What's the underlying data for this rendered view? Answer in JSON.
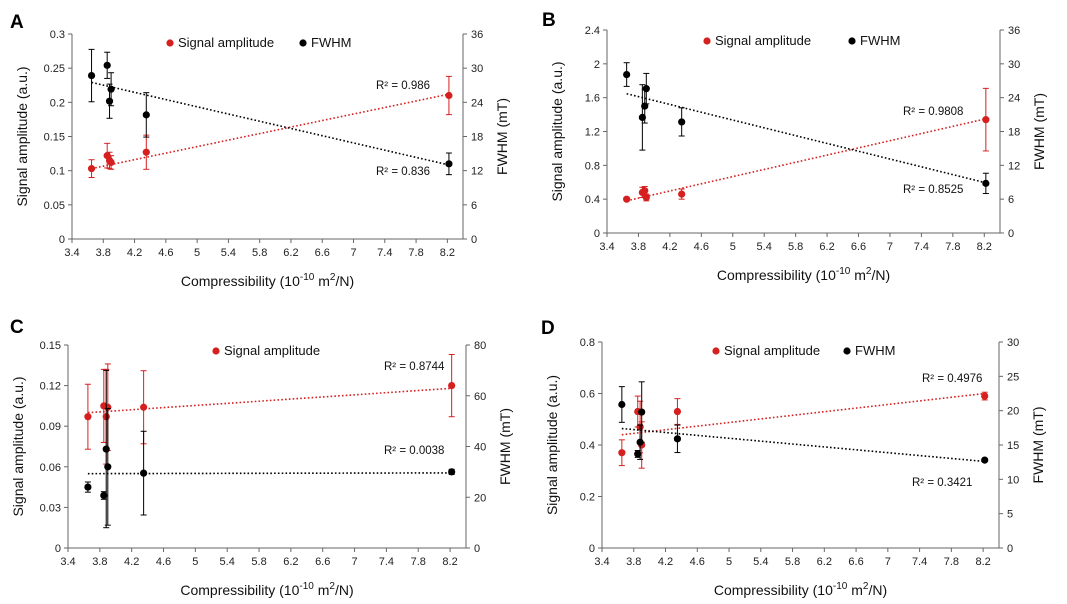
{
  "chart_data": [
    {
      "panel": "A",
      "type": "scatter",
      "xlabel": "Compressibility (10",
      "xlabel_exp": "-10",
      "xlabel_unit": " m",
      "xlabel_unit_exp": "2",
      "xlabel_end": "/N)",
      "ylabel": "Signal amplitude (a.u.)",
      "y2label": "FWHM (mT)",
      "xlim": [
        3.4,
        8.4
      ],
      "xticks": [
        "3.4",
        "3.8",
        "4.2",
        "4.6",
        "5",
        "5.4",
        "5.8",
        "6.2",
        "6.6",
        "7",
        "7.4",
        "7.8",
        "8.2"
      ],
      "ylim": [
        0,
        0.3
      ],
      "yticks": [
        "0",
        "0.05",
        "0.1",
        "0.15",
        "0.2",
        "0.25",
        "0.3"
      ],
      "y2lim": [
        0,
        36
      ],
      "y2ticks": [
        "0",
        "6",
        "12",
        "18",
        "24",
        "30",
        "36"
      ],
      "legend": [
        "Signal amplitude",
        "FWHM"
      ],
      "series": [
        {
          "name": "Signal amplitude",
          "color": "#d62020",
          "axis": "left",
          "x": [
            3.65,
            3.85,
            3.88,
            3.9,
            4.35,
            8.22
          ],
          "y": [
            0.103,
            0.122,
            0.115,
            0.112,
            0.127,
            0.21
          ],
          "err": [
            0.013,
            0.018,
            0.012,
            0.01,
            0.025,
            0.028
          ],
          "trend": [
            [
              3.65,
              0.103
            ],
            [
              8.22,
              0.212
            ]
          ],
          "r2": "R² = 0.986"
        },
        {
          "name": "FWHM",
          "color": "#000000",
          "axis": "right",
          "x": [
            3.65,
            3.85,
            3.88,
            3.9,
            4.35,
            8.22
          ],
          "y": [
            28.7,
            30.5,
            24.2,
            26.3,
            21.8,
            13.2
          ],
          "err": [
            4.6,
            2.3,
            3.0,
            2.9,
            3.9,
            1.9
          ],
          "trend": [
            [
              3.65,
              27.5
            ],
            [
              8.22,
              13.0
            ]
          ],
          "r2": "R² = 0.836"
        }
      ]
    },
    {
      "panel": "B",
      "type": "scatter",
      "xlabel": "Compressibility (10",
      "xlabel_exp": "-10",
      "xlabel_unit": " m",
      "xlabel_unit_exp": "2",
      "xlabel_end": "/N)",
      "ylabel": "Signal amplitude (a.u.)",
      "y2label": "FWHM (mT)",
      "xlim": [
        3.4,
        8.4
      ],
      "xticks": [
        "3.4",
        "3.8",
        "4.2",
        "4.6",
        "5",
        "5.4",
        "5.8",
        "6.2",
        "6.6",
        "7",
        "7.4",
        "7.8",
        "8.2"
      ],
      "ylim": [
        0,
        2.4
      ],
      "yticks": [
        "0",
        "0.4",
        "0.8",
        "1.2",
        "1.6",
        "2",
        "2.4"
      ],
      "y2lim": [
        0,
        36
      ],
      "y2ticks": [
        "0",
        "6",
        "12",
        "18",
        "24",
        "30",
        "36"
      ],
      "legend": [
        "Signal amplitude",
        "FWHM"
      ],
      "series": [
        {
          "name": "Signal amplitude",
          "color": "#d62020",
          "axis": "left",
          "x": [
            3.65,
            3.85,
            3.88,
            3.9,
            4.35,
            8.22
          ],
          "y": [
            0.4,
            0.48,
            0.5,
            0.42,
            0.46,
            1.34
          ],
          "err": [
            0.02,
            0.06,
            0.05,
            0.04,
            0.06,
            0.37
          ],
          "trend": [
            [
              3.65,
              0.38
            ],
            [
              8.22,
              1.35
            ]
          ],
          "r2": "R² = 0.9808"
        },
        {
          "name": "FWHM",
          "color": "#000000",
          "axis": "right",
          "x": [
            3.65,
            3.85,
            3.88,
            3.9,
            4.35,
            8.22
          ],
          "y": [
            28.1,
            20.5,
            22.5,
            25.6,
            19.7,
            8.8
          ],
          "err": [
            2.1,
            5.8,
            3.0,
            2.7,
            2.5,
            1.8
          ],
          "trend": [
            [
              3.65,
              24.7
            ],
            [
              8.22,
              8.9
            ]
          ],
          "r2": "R² = 0.8525"
        }
      ]
    },
    {
      "panel": "C",
      "type": "scatter",
      "xlabel": "Compressibility (10",
      "xlabel_exp": "-10",
      "xlabel_unit": " m",
      "xlabel_unit_exp": "2",
      "xlabel_end": "/N)",
      "ylabel": "Signal amplitude (a.u.)",
      "y2label": "FWHM (mT)",
      "xlim": [
        3.4,
        8.4
      ],
      "xticks": [
        "3.4",
        "3.8",
        "4.2",
        "4.6",
        "5",
        "5.4",
        "5.8",
        "6.2",
        "6.6",
        "7",
        "7.4",
        "7.8",
        "8.2"
      ],
      "ylim": [
        0,
        0.15
      ],
      "yticks": [
        "0",
        "0.03",
        "0.06",
        "0.09",
        "0.12",
        "0.15"
      ],
      "y2lim": [
        0,
        80
      ],
      "y2ticks": [
        "0",
        "20",
        "40",
        "60",
        "80"
      ],
      "legend": [
        "Signal amplitude"
      ],
      "series": [
        {
          "name": "Signal amplitude",
          "color": "#d62020",
          "axis": "left",
          "x": [
            3.65,
            3.85,
            3.88,
            3.9,
            4.35,
            8.22
          ],
          "y": [
            0.097,
            0.105,
            0.097,
            0.104,
            0.104,
            0.12
          ],
          "err": [
            0.024,
            0.027,
            0.035,
            0.032,
            0.027,
            0.023
          ],
          "trend": [
            [
              3.65,
              0.1
            ],
            [
              8.22,
              0.118
            ]
          ],
          "r2": "R² = 0.8744"
        },
        {
          "name": "FWHM",
          "color": "#000000",
          "axis": "right",
          "x": [
            3.65,
            3.85,
            3.88,
            3.9,
            4.35,
            8.22
          ],
          "y": [
            24.0,
            20.7,
            39.0,
            32.0,
            29.5,
            30.0
          ],
          "err": [
            2.0,
            1.5,
            31.0,
            23.0,
            16.5,
            1.0
          ],
          "trend": [
            [
              3.65,
              29.3
            ],
            [
              8.22,
              29.6
            ]
          ],
          "r2": "R² = 0.0038"
        }
      ]
    },
    {
      "panel": "D",
      "type": "scatter",
      "xlabel": "Compressibility (10",
      "xlabel_exp": "-10",
      "xlabel_unit": " m",
      "xlabel_unit_exp": "2",
      "xlabel_end": "/N)",
      "ylabel": "Signal amplitude (a.u.)",
      "y2label": "FWHM (mT)",
      "xlim": [
        3.4,
        8.4
      ],
      "xticks": [
        "3.4",
        "3.8",
        "4.2",
        "4.6",
        "5",
        "5.4",
        "5.8",
        "6.2",
        "6.6",
        "7",
        "7.4",
        "7.8",
        "8.2"
      ],
      "ylim": [
        0,
        0.8
      ],
      "yticks": [
        "0",
        "0.2",
        "0.4",
        "0.6",
        "0.8"
      ],
      "y2lim": [
        0,
        30
      ],
      "y2ticks": [
        "0",
        "5",
        "10",
        "15",
        "20",
        "25",
        "30"
      ],
      "legend": [
        "Signal amplitude",
        "FWHM"
      ],
      "series": [
        {
          "name": "Signal amplitude",
          "color": "#d62020",
          "axis": "left",
          "x": [
            3.65,
            3.85,
            3.88,
            3.9,
            4.35,
            8.22
          ],
          "y": [
            0.37,
            0.53,
            0.47,
            0.4,
            0.53,
            0.59
          ],
          "err": [
            0.05,
            0.06,
            0.1,
            0.09,
            0.05,
            0.015
          ],
          "trend": [
            [
              3.65,
              0.44
            ],
            [
              8.22,
              0.6
            ]
          ],
          "r2": "R² = 0.4976"
        },
        {
          "name": "FWHM",
          "color": "#000000",
          "axis": "right",
          "x": [
            3.65,
            3.85,
            3.88,
            3.9,
            4.35,
            8.22
          ],
          "y": [
            20.9,
            13.7,
            15.4,
            19.8,
            15.9,
            12.8
          ],
          "err": [
            2.6,
            0.5,
            2.5,
            4.4,
            2.0,
            0.2
          ],
          "trend": [
            [
              3.65,
              17.4
            ],
            [
              8.22,
              12.6
            ]
          ],
          "r2": "R² = 0.3421"
        }
      ]
    }
  ]
}
